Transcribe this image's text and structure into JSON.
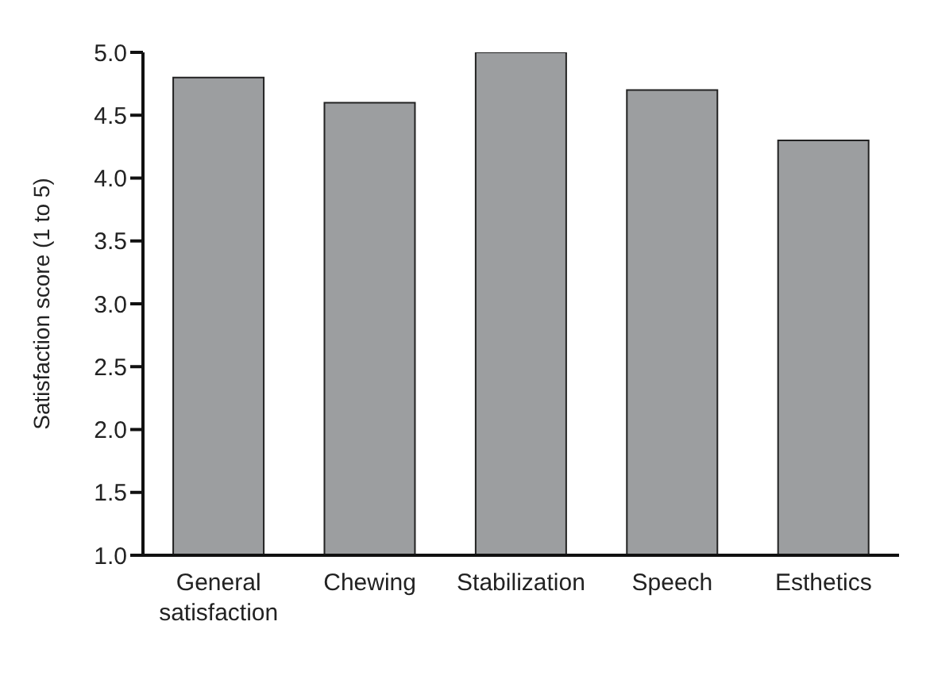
{
  "chart_data": {
    "type": "bar",
    "ylabel": "Satisfaction score (1 to 5)",
    "categories": [
      "General satisfaction",
      "Chewing",
      "Stabilization",
      "Speech",
      "Esthetics"
    ],
    "values": [
      4.8,
      4.6,
      5.0,
      4.7,
      4.3
    ],
    "color": "#9c9ea0",
    "ylim": [
      1.0,
      5.0
    ],
    "yticks": [
      {
        "value": 1,
        "label": "1.0"
      },
      {
        "value": 1.5,
        "label": "1.5"
      },
      {
        "value": 2,
        "label": "2.0"
      },
      {
        "value": 2.5,
        "label": "2.5"
      },
      {
        "value": 3,
        "label": "3.0"
      },
      {
        "value": 3.5,
        "label": "3.5"
      },
      {
        "value": 4,
        "label": "4.0"
      },
      {
        "value": 4.5,
        "label": "4.5"
      },
      {
        "value": 5,
        "label": "5.0"
      }
    ],
    "grid": false,
    "legend": false
  }
}
